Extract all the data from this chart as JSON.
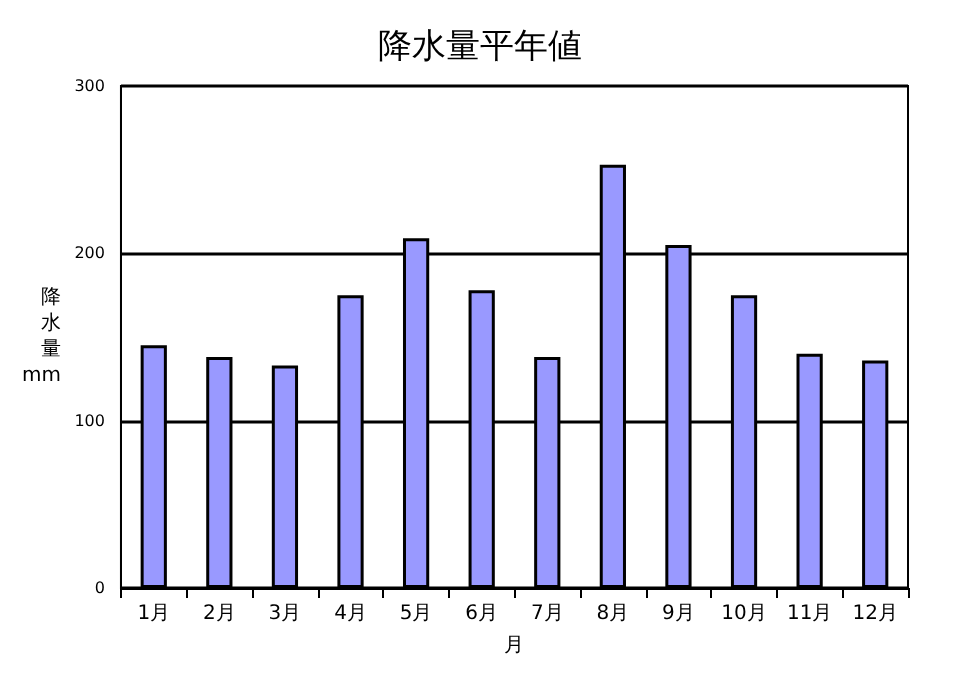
{
  "chart_data": {
    "type": "bar",
    "title": "降水量平年値",
    "xlabel": "月",
    "ylabel": "降水量mm",
    "categories": [
      "1月",
      "2月",
      "3月",
      "4月",
      "5月",
      "6月",
      "7月",
      "8月",
      "9月",
      "10月",
      "11月",
      "12月"
    ],
    "values": [
      145,
      138,
      133,
      175,
      209,
      178,
      138,
      253,
      205,
      175,
      140,
      136
    ],
    "color": "#9999ff",
    "ylim": [
      0,
      300
    ],
    "yticks": [
      0,
      100,
      200,
      300
    ],
    "grid": "y"
  }
}
